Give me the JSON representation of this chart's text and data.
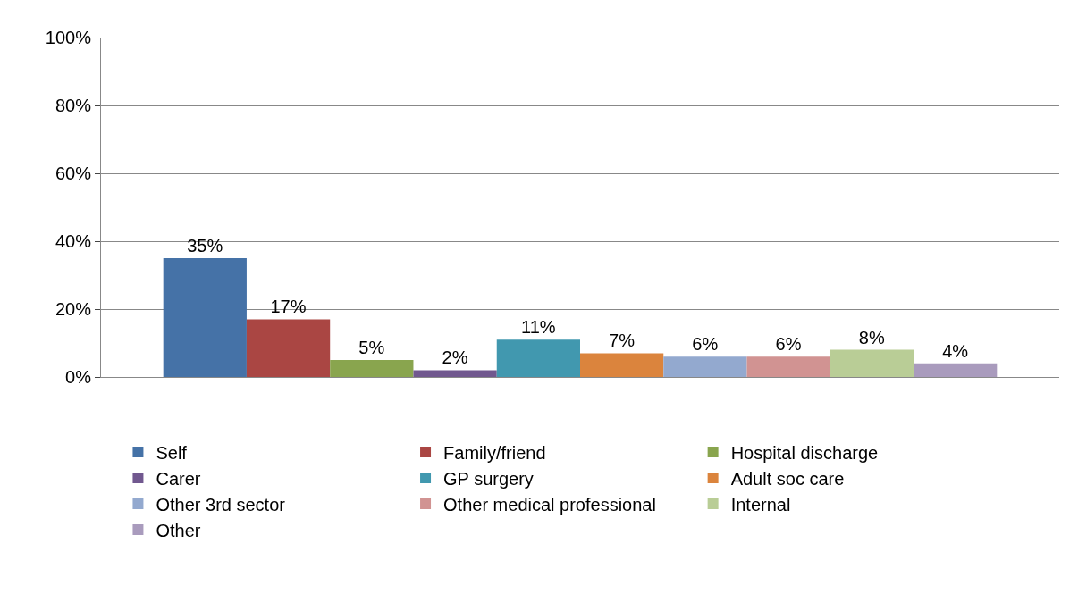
{
  "chart_data": {
    "type": "bar",
    "categories": [
      null
    ],
    "ylim": [
      0,
      100
    ],
    "yticks": [
      {
        "value": 0,
        "label": "0%"
      },
      {
        "value": 20,
        "label": "20%"
      },
      {
        "value": 40,
        "label": "40%"
      },
      {
        "value": 60,
        "label": "60%"
      },
      {
        "value": 80,
        "label": "80%"
      },
      {
        "value": 100,
        "label": "100%"
      }
    ],
    "grid": "y",
    "legend": "bottom",
    "series": [
      {
        "name": "Self",
        "color": "#4572a7",
        "values": [
          35
        ],
        "value_labels": [
          "35%"
        ]
      },
      {
        "name": "Family/friend",
        "color": "#aa4643",
        "values": [
          17
        ],
        "value_labels": [
          "17%"
        ]
      },
      {
        "name": "Hospital discharge",
        "color": "#89a54e",
        "values": [
          5
        ],
        "value_labels": [
          "5%"
        ]
      },
      {
        "name": "Carer",
        "color": "#71588f",
        "values": [
          2
        ],
        "value_labels": [
          "2%"
        ]
      },
      {
        "name": "GP surgery",
        "color": "#4198af",
        "values": [
          11
        ],
        "value_labels": [
          "11%"
        ]
      },
      {
        "name": "Adult soc care",
        "color": "#db843d",
        "values": [
          7
        ],
        "value_labels": [
          "7%"
        ]
      },
      {
        "name": "Other 3rd sector",
        "color": "#93a9cf",
        "values": [
          6
        ],
        "value_labels": [
          "6%"
        ]
      },
      {
        "name": "Other medical professional",
        "color": "#d19392",
        "values": [
          6
        ],
        "value_labels": [
          "6%"
        ]
      },
      {
        "name": "Internal",
        "color": "#b9cd96",
        "values": [
          8
        ],
        "value_labels": [
          "8%"
        ]
      },
      {
        "name": "Other",
        "color": "#a99bbd",
        "values": [
          4
        ],
        "value_labels": [
          "4%"
        ]
      }
    ]
  }
}
